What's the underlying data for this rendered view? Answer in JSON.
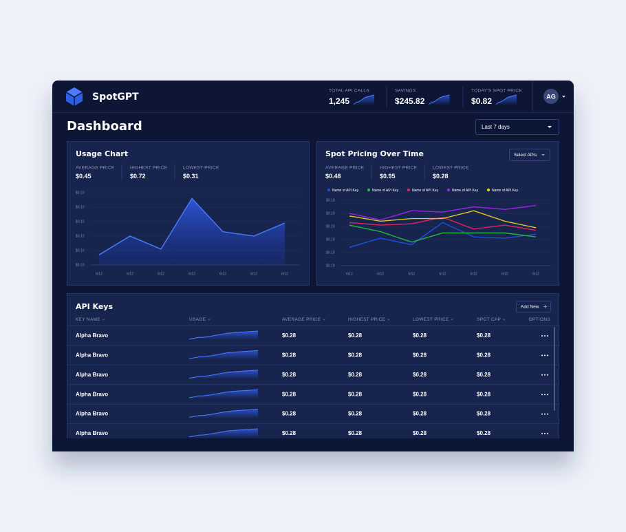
{
  "header": {
    "brand": "SpotGPT",
    "avatar": "AG",
    "stats": [
      {
        "label": "TOTAL API CALLS",
        "value": "1,245"
      },
      {
        "label": "SAVINGS",
        "value": "$245.82"
      },
      {
        "label": "TODAY'S SPOT PRICE",
        "value": "$0.82"
      }
    ]
  },
  "page_title": "Dashboard",
  "range_select": "Last 7 days",
  "usage_stats": [
    {
      "label": "AVERAGE PRICE",
      "value": "$0.45"
    },
    {
      "label": "HIGHEST PRICE",
      "value": "$0.72"
    },
    {
      "label": "LOWEST PRICE",
      "value": "$0.31"
    }
  ],
  "spot_stats": [
    {
      "label": "AVERAGE PRICE",
      "value": "$0.48"
    },
    {
      "label": "HIGHEST PRICE",
      "value": "$0.95"
    },
    {
      "label": "LOWEST PRICE",
      "value": "$0.28"
    }
  ],
  "select_apis": "Select APIs",
  "chart_data": [
    {
      "type": "area",
      "title": "Usage Chart",
      "categories": [
        "6/12",
        "6/12",
        "6/12",
        "6/12",
        "6/12",
        "6/12",
        "6/12"
      ],
      "values": [
        0.07,
        0.2,
        0.11,
        0.46,
        0.23,
        0.2,
        0.29
      ],
      "color": "#4a78f5",
      "ylim": [
        0,
        0.5
      ],
      "yticks": [
        {
          "value": 0,
          "label": "$0.10"
        },
        {
          "value": 0.1,
          "label": "$0.10"
        },
        {
          "value": 0.2,
          "label": "$0.10"
        },
        {
          "value": 0.3,
          "label": "$0.10"
        },
        {
          "value": 0.4,
          "label": "$0.10"
        },
        {
          "value": 0.5,
          "label": "$0.10"
        }
      ],
      "grid": true
    },
    {
      "type": "line",
      "title": "Spot Pricing Over Time",
      "categories": [
        "6/12",
        "6/12",
        "6/12",
        "6/12",
        "6/12",
        "6/12",
        "6/12"
      ],
      "series": [
        {
          "name": "Name of API Key",
          "color": "#1f4fe0",
          "values": [
            0.14,
            0.21,
            0.16,
            0.33,
            0.22,
            0.21,
            0.24
          ]
        },
        {
          "name": "Name of API Key",
          "color": "#22b83c",
          "values": [
            0.31,
            0.26,
            0.18,
            0.25,
            0.25,
            0.25,
            0.22
          ]
        },
        {
          "name": "Name of API Key",
          "color": "#e0245e",
          "values": [
            0.33,
            0.31,
            0.32,
            0.37,
            0.28,
            0.31,
            0.27
          ]
        },
        {
          "name": "Name of API Key",
          "color": "#9d22e6",
          "values": [
            0.4,
            0.35,
            0.42,
            0.41,
            0.45,
            0.43,
            0.46
          ]
        },
        {
          "name": "Name of API Key",
          "color": "#e3c81f",
          "values": [
            0.38,
            0.34,
            0.36,
            0.36,
            0.42,
            0.34,
            0.29
          ]
        }
      ],
      "ylim": [
        0,
        0.5
      ],
      "yticks": [
        {
          "value": 0,
          "label": "$0.10"
        },
        {
          "value": 0.1,
          "label": "$0.10"
        },
        {
          "value": 0.2,
          "label": "$0.10"
        },
        {
          "value": 0.3,
          "label": "$0.10"
        },
        {
          "value": 0.4,
          "label": "$0.10"
        },
        {
          "value": 0.5,
          "label": "$0.10"
        }
      ],
      "grid": true,
      "legend": "top"
    }
  ],
  "api_keys": {
    "title": "API Keys",
    "add_new": "Add New",
    "columns": [
      "KEY NAME",
      "USAGE",
      "AVERAGE PRICE",
      "HIGHEST PRICE",
      "LOWEST PRICE",
      "SPOT CAP",
      "OPTIONS"
    ],
    "rows": [
      [
        "Alpha Bravo",
        "$0.28",
        "$0.28",
        "$0.28",
        "$0.28"
      ],
      [
        "Alpha Bravo",
        "$0.28",
        "$0.28",
        "$0.28",
        "$0.28"
      ],
      [
        "Alpha Bravo",
        "$0.28",
        "$0.28",
        "$0.28",
        "$0.28"
      ],
      [
        "Alpha Bravo",
        "$0.28",
        "$0.28",
        "$0.28",
        "$0.28"
      ],
      [
        "Alpha Bravo",
        "$0.28",
        "$0.28",
        "$0.28",
        "$0.28"
      ],
      [
        "Alpha Bravo",
        "$0.28",
        "$0.28",
        "$0.28",
        "$0.28"
      ]
    ]
  }
}
